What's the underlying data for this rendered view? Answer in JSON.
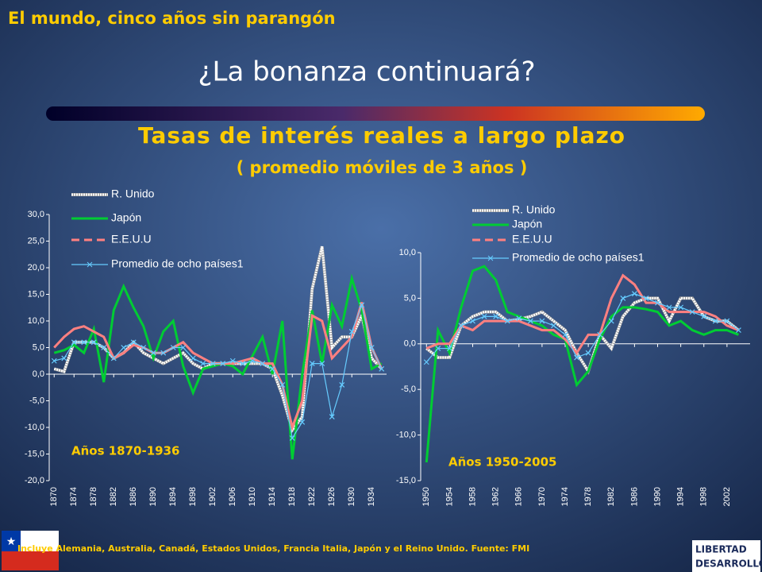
{
  "slide": {
    "header": "El mundo, cinco años sin parangón",
    "title": "¿La bonanza continuará?",
    "chart_title": "Tasas de interés reales a largo plazo",
    "chart_subtitle": "( promedio móviles de 3 años )",
    "footnote": "Incluye Alemania, Australia, Canadá, Estados Unidos, Francia Italia, Japón y el Reino Unido.  Fuente: FMI",
    "logo": [
      "LIBERTAD",
      "DESARROLLO"
    ]
  },
  "chart_data": [
    {
      "type": "line",
      "annotation": "Años 1870-1936",
      "x": [
        1870,
        1872,
        1874,
        1876,
        1878,
        1880,
        1882,
        1884,
        1886,
        1888,
        1890,
        1892,
        1894,
        1896,
        1898,
        1900,
        1902,
        1904,
        1906,
        1908,
        1910,
        1912,
        1914,
        1916,
        1918,
        1920,
        1922,
        1924,
        1926,
        1928,
        1930,
        1932,
        1934,
        1936
      ],
      "xlim": [
        1869,
        1937
      ],
      "xticks": [
        1870,
        1874,
        1878,
        1882,
        1886,
        1890,
        1894,
        1898,
        1902,
        1906,
        1910,
        1914,
        1918,
        1922,
        1926,
        1930,
        1934
      ],
      "ylim": [
        -20,
        30
      ],
      "yticks": [
        {
          "value": 30,
          "label": "30,0"
        },
        {
          "value": 25,
          "label": "25,0"
        },
        {
          "value": 20,
          "label": "20,0"
        },
        {
          "value": 15,
          "label": "15,0"
        },
        {
          "value": 10,
          "label": "10,0"
        },
        {
          "value": 5,
          "label": "5,0"
        },
        {
          "value": 0,
          "label": "0,0"
        },
        {
          "value": -5,
          "label": "-5,0"
        },
        {
          "value": -10,
          "label": "-10,0"
        },
        {
          "value": -15,
          "label": "-15,0"
        },
        {
          "value": -20,
          "label": "-20,0"
        }
      ],
      "series": [
        {
          "name": "R. Unido",
          "color": "#ffffff",
          "values": [
            1,
            0.5,
            6,
            6,
            6,
            5,
            3,
            4,
            6,
            4,
            3,
            2,
            3,
            4,
            2,
            1,
            2,
            2,
            2,
            2,
            2,
            2,
            1,
            -4,
            -10.5,
            -8,
            16,
            24,
            5,
            7,
            7,
            11,
            3,
            1
          ]
        },
        {
          "name": "Japón",
          "color": "#00cc33",
          "values": [
            4,
            4.5,
            5.5,
            4,
            8.5,
            -1.5,
            12,
            16.5,
            12.5,
            9,
            3,
            8,
            10,
            1.5,
            -3.5,
            1,
            1.5,
            2,
            1.5,
            0,
            3.5,
            7,
            0,
            10,
            -16,
            0,
            12,
            2,
            13,
            9,
            18,
            12,
            1,
            2
          ]
        },
        {
          "name": "E.E.U.U",
          "color": "#ff8080",
          "values": [
            5,
            7,
            8.5,
            9,
            8,
            7,
            3,
            4,
            5.5,
            5,
            4,
            4,
            5,
            6,
            4,
            3,
            2,
            2,
            2,
            2.5,
            3,
            2,
            2,
            -2,
            -10,
            -5,
            11,
            10,
            3,
            5,
            7,
            13.5,
            5,
            1
          ]
        },
        {
          "name": "Promedio de ocho países1",
          "color": "#66ccff",
          "values": [
            2.5,
            3,
            6,
            6,
            6,
            5,
            3,
            5,
            6,
            5,
            4,
            4,
            5,
            5,
            3,
            2,
            2,
            2,
            2.5,
            2,
            2.5,
            2,
            1,
            -2,
            -12,
            -9,
            2,
            2,
            -8,
            -2,
            8,
            13,
            5,
            1
          ]
        }
      ]
    },
    {
      "type": "line",
      "annotation": "Años 1950-2005",
      "x": [
        1950,
        1952,
        1954,
        1956,
        1958,
        1960,
        1962,
        1964,
        1966,
        1968,
        1970,
        1972,
        1974,
        1976,
        1978,
        1980,
        1982,
        1984,
        1986,
        1988,
        1990,
        1992,
        1994,
        1996,
        1998,
        2000,
        2002,
        2004
      ],
      "xlim": [
        1949,
        2006
      ],
      "xticks": [
        1950,
        1954,
        1958,
        1962,
        1966,
        1970,
        1974,
        1978,
        1982,
        1986,
        1990,
        1994,
        1998,
        2002
      ],
      "ylim": [
        -15,
        10
      ],
      "yticks": [
        {
          "value": 10,
          "label": "10,0"
        },
        {
          "value": 5,
          "label": "5,0"
        },
        {
          "value": 0,
          "label": "0,0"
        },
        {
          "value": -5,
          "label": "-5,0"
        },
        {
          "value": -10,
          "label": "-10,0"
        },
        {
          "value": -15,
          "label": "-15,0"
        }
      ],
      "series": [
        {
          "name": "R. Unido",
          "color": "#ffffff",
          "values": [
            -0.5,
            -1.5,
            -1.5,
            2,
            3,
            3.5,
            3.5,
            2.5,
            2.7,
            3,
            3.5,
            2.5,
            1.5,
            -1,
            -3,
            1,
            -0.5,
            3,
            4.5,
            5,
            5,
            2.5,
            5,
            5,
            3,
            2.5,
            2.5,
            1.5
          ]
        },
        {
          "name": "Japón",
          "color": "#00cc33",
          "values": [
            -13,
            1.5,
            -1,
            4,
            8,
            8.5,
            7,
            3.5,
            3,
            2.5,
            2,
            1,
            0.5,
            -4.5,
            -3,
            0.5,
            3,
            4,
            4,
            3.8,
            3.5,
            2,
            2.5,
            1.5,
            1,
            1.5,
            1.5,
            1
          ]
        },
        {
          "name": "E.E.U.U",
          "color": "#ff8080",
          "values": [
            -0.5,
            0,
            0,
            2,
            1.5,
            2.5,
            2.5,
            2.5,
            2.5,
            2,
            1.5,
            1.5,
            0.5,
            -1,
            1,
            1,
            5,
            7.5,
            6.5,
            4.5,
            4.5,
            3.5,
            3.5,
            3.5,
            3.5,
            3,
            2,
            1.5
          ]
        },
        {
          "name": "Promedio de ocho países1",
          "color": "#66ccff",
          "values": [
            -2,
            -0.5,
            -0.5,
            2,
            2.5,
            3,
            3,
            2.5,
            2.8,
            2.5,
            2.5,
            2,
            1,
            -1.5,
            -1,
            1,
            2.5,
            5,
            5.5,
            5,
            4.5,
            4,
            4,
            3.5,
            3,
            2.5,
            2.5,
            1.5
          ]
        }
      ]
    }
  ]
}
